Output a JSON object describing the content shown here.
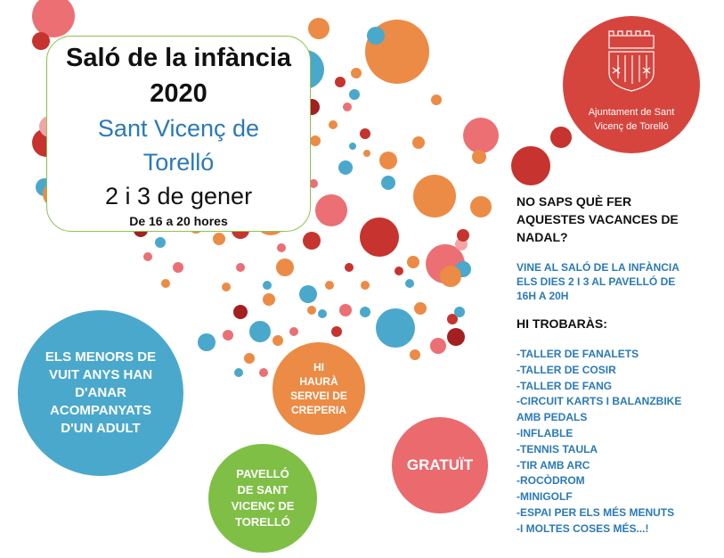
{
  "title": {
    "line1": "Saló de la infància",
    "line2": "2020"
  },
  "place": {
    "line1": "Sant Vicenç de",
    "line2": "Torelló"
  },
  "dates": "2 i 3 de gener",
  "hours": "De 16 a 20 hores",
  "logo": {
    "line1": "Ajuntament de Sant",
    "line2": "Vicenç de Torelló",
    "color": "#d5453e"
  },
  "question": {
    "line1": "NO SAPS QUÈ FER",
    "line2": "AQUESTES VACANCES DE",
    "line3": "NADAL?"
  },
  "invite": {
    "line1": "VINE AL SALÓ DE LA INFÀNCIA",
    "line2": "ELS DIES 2 I 3 AL PAVELLÓ DE",
    "line3": "16H A 20H"
  },
  "find_heading": "HI TROBARÀS:",
  "activities": [
    "-TALLER DE FANALETS",
    "-TALLER DE COSIR",
    "-TALLER DE FANG",
    "-CIRCUIT KARTS  I BALANZBIKE",
    "AMB PEDALS",
    "-INFLABLE",
    "-TENNIS TAULA",
    "-TIR AMB ARC",
    "-ROCÒDROM",
    "-MINIGOLF",
    "-ESPAI PER ELS MÉS MENUTS",
    "-I MOLTES COSES MÉS...!"
  ],
  "badges": {
    "minors": {
      "lines": [
        "ELS MENORS DE",
        "VUIT ANYS HAN",
        "D'ANAR",
        "ACOMPANYATS",
        "D'UN ADULT"
      ],
      "color": "#4aa8cc"
    },
    "creperia": {
      "lines": [
        "HI",
        "HAURÀ",
        "SERVEI DE",
        "CREPERIA"
      ],
      "color": "#ec8b45"
    },
    "pavello": {
      "lines": [
        "PAVELLÓ",
        "DE SANT",
        "VICENÇ DE",
        "TORELLÓ"
      ],
      "color": "#7fbf45"
    },
    "free": {
      "lines": [
        "GRATUÏT"
      ],
      "color": "#ea6a6e"
    }
  },
  "colors": {
    "orange": "#ec8b45",
    "pink": "#ec6f74",
    "blue": "#4aa8cc",
    "red": "#c7332e",
    "darkred": "#a31f22",
    "lightpink": "#f3a4a6",
    "green": "#8cc24a",
    "text_blue": "#2a7ab7"
  }
}
